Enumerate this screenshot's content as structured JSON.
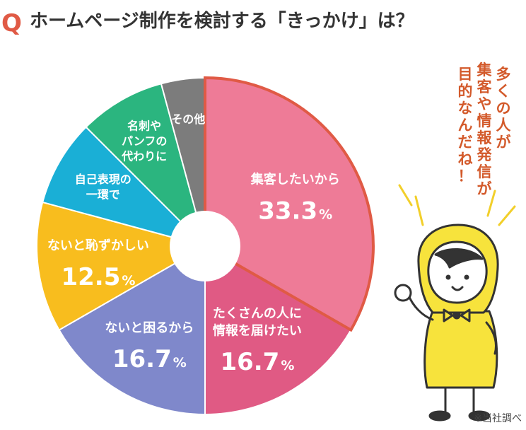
{
  "title": {
    "q": "Q",
    "text": "ホームページ制作を検討する「きっかけ」は？"
  },
  "chart_data": {
    "type": "pie",
    "slices": [
      {
        "label_lines": [
          "集客したいから"
        ],
        "value": 33.3,
        "value_text": "33.3",
        "unit": "%",
        "color": "#ee7b97"
      },
      {
        "label_lines": [
          "たくさんの人に",
          "情報を届けたい"
        ],
        "value": 16.7,
        "value_text": "16.7",
        "unit": "%",
        "color": "#e05a84"
      },
      {
        "label_lines": [
          "ないと困るから"
        ],
        "value": 16.7,
        "value_text": "16.7",
        "unit": "%",
        "color": "#7f88cb"
      },
      {
        "label_lines": [
          "ないと恥ずかしい"
        ],
        "value": 12.5,
        "value_text": "12.5",
        "unit": "%",
        "color": "#f8bd1e"
      },
      {
        "label_lines": [
          "自己表現の",
          "一環で"
        ],
        "value": 8.3,
        "value_text": "",
        "unit": "",
        "color": "#1aafd6"
      },
      {
        "label_lines": [
          "名刺や",
          "パンフの",
          "代わりに"
        ],
        "value": 8.3,
        "value_text": "",
        "unit": "",
        "color": "#2bb57f"
      },
      {
        "label_lines": [
          "その他"
        ],
        "value": 4.2,
        "value_text": "",
        "unit": "",
        "color": "#7c7c7c"
      }
    ],
    "highlight_index": 0,
    "highlight_color": "#e05a45"
  },
  "callout": {
    "lines": [
      "多くの人が",
      "集客や情報発信が",
      "目的なんだね！"
    ]
  },
  "note": "※当社調べ",
  "colors": {
    "accent": "#e05a45",
    "text": "#333333",
    "character_yellow": "#f7e33c"
  }
}
